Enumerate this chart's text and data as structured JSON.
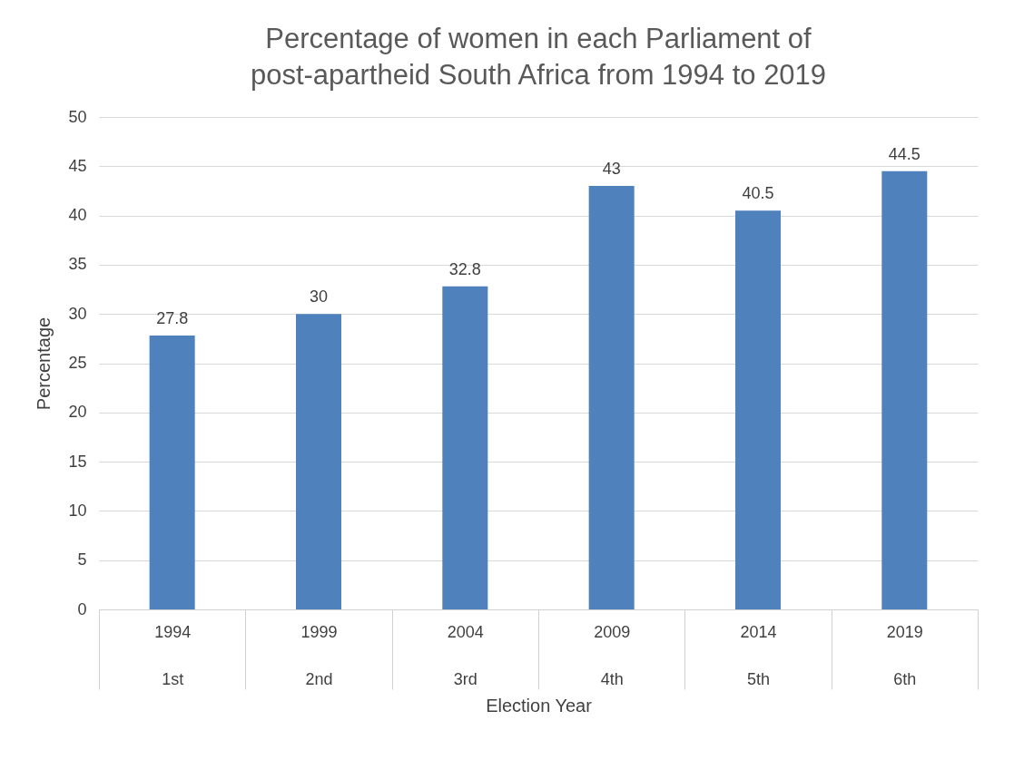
{
  "chart_data": {
    "type": "bar",
    "title": "Percentage of women in each Parliament of post-apartheid South Africa from 1994 to 2019",
    "xlabel": "Election Year",
    "ylabel": "Percentage",
    "categories": [
      "1994\n1st",
      "1999\n2nd",
      "2004\n3rd",
      "2009\n4th",
      "2014\n5th",
      "2019\n6th"
    ],
    "values": [
      27.8,
      30,
      32.8,
      43,
      40.5,
      44.5
    ],
    "color": "#4f81bd",
    "ylim": [
      0,
      50
    ],
    "yticks": [
      0,
      5,
      10,
      15,
      20,
      25,
      30,
      35,
      40,
      45,
      50
    ],
    "grid": "y",
    "data_labels": true
  }
}
